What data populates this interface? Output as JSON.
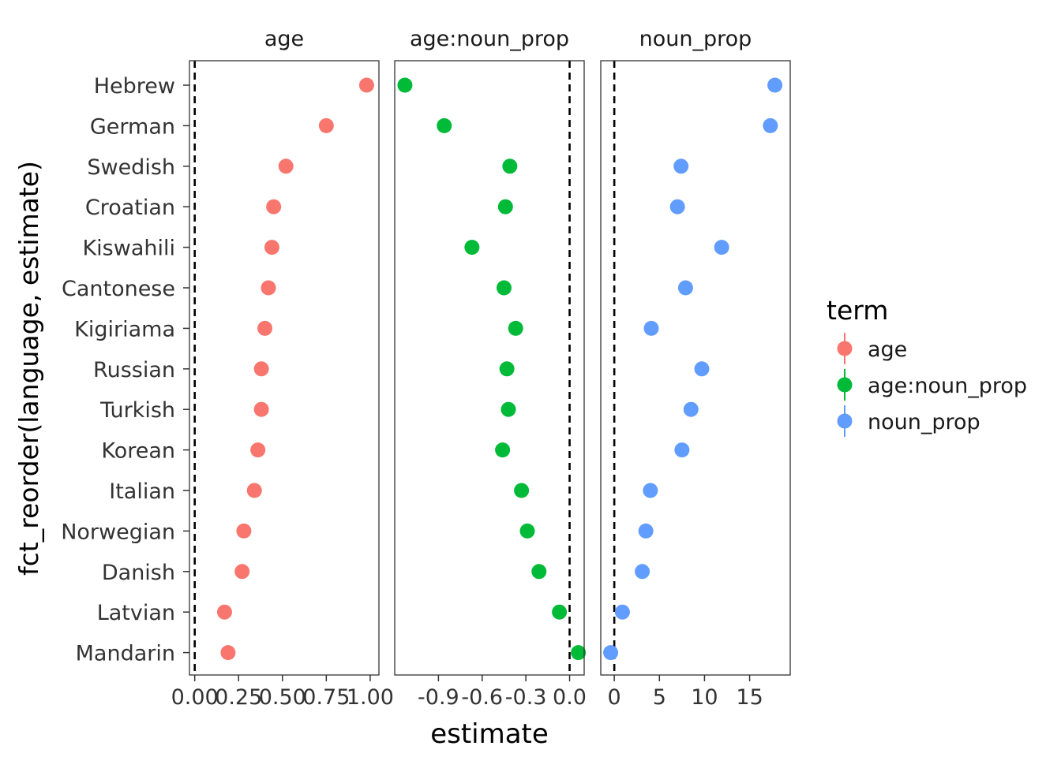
{
  "chart_data": {
    "type": "scatter",
    "xlabel": "estimate",
    "ylabel": "fct_reorder(language, estimate)",
    "languages": [
      "Hebrew",
      "German",
      "Swedish",
      "Croatian",
      "Kiswahili",
      "Cantonese",
      "Kigiriama",
      "Russian",
      "Turkish",
      "Korean",
      "Italian",
      "Norwegian",
      "Danish",
      "Latvian",
      "Mandarin"
    ],
    "panels": [
      {
        "title": "age",
        "xlim": [
          -0.03,
          1.05
        ],
        "xticks": [
          0.0,
          0.25,
          0.5,
          0.75,
          1.0
        ],
        "xtick_labels": [
          "0.00",
          "0.25",
          "0.50",
          "0.75",
          "1.00"
        ],
        "color": "#F8766D",
        "values": [
          0.98,
          0.75,
          0.52,
          0.45,
          0.44,
          0.42,
          0.4,
          0.38,
          0.38,
          0.36,
          0.34,
          0.28,
          0.27,
          0.17,
          0.19
        ]
      },
      {
        "title": "age:noun_prop",
        "xlim": [
          -1.2,
          0.1
        ],
        "xticks": [
          -0.9,
          -0.6,
          -0.3,
          0.0
        ],
        "xtick_labels": [
          "-0.9",
          "-0.6",
          "-0.3",
          "0.0"
        ],
        "color": "#00BA38",
        "values": [
          -1.13,
          -0.86,
          -0.41,
          -0.44,
          -0.67,
          -0.45,
          -0.37,
          -0.43,
          -0.42,
          -0.46,
          -0.33,
          -0.29,
          -0.21,
          -0.07,
          0.06
        ]
      },
      {
        "title": "noun_prop",
        "xlim": [
          -1.5,
          19.5
        ],
        "xticks": [
          0,
          5,
          10,
          15
        ],
        "xtick_labels": [
          "0",
          "5",
          "10",
          "15"
        ],
        "color": "#619CFF",
        "values": [
          17.8,
          17.3,
          7.4,
          7.0,
          11.9,
          7.9,
          4.1,
          9.7,
          8.5,
          7.5,
          4.0,
          3.5,
          3.1,
          0.9,
          -0.4
        ]
      }
    ],
    "legend": {
      "title": "term",
      "position": "right",
      "items": [
        {
          "label": "age",
          "color": "#F8766D"
        },
        {
          "label": "age:noun_prop",
          "color": "#00BA38"
        },
        {
          "label": "noun_prop",
          "color": "#619CFF"
        }
      ]
    }
  }
}
